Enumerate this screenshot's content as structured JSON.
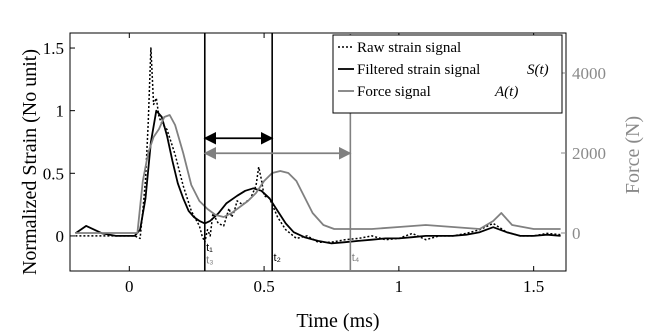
{
  "chart_data": {
    "type": "line",
    "xlabel": "Time (ms)",
    "ylabel": "Normalized Strain (No unit)",
    "y2label": "Force (N)",
    "xlim": [
      -0.22,
      1.62
    ],
    "ylim": [
      -0.28,
      1.62
    ],
    "y2lim": [
      -950,
      5000
    ],
    "xticks": [
      0,
      0.5,
      1,
      1.5
    ],
    "xtick_labels": [
      "0",
      "0.5",
      "1",
      "1.5"
    ],
    "yticks": [
      0,
      0.5,
      1,
      1.5
    ],
    "ytick_labels": [
      "0",
      "0.5",
      "1",
      "1.5"
    ],
    "y2ticks": [
      0,
      2000,
      4000
    ],
    "y2tick_labels": [
      "0",
      "2000",
      "4000"
    ],
    "grid": false,
    "legend_position": "top-right",
    "colors": {
      "raw": "#000000",
      "filtered": "#000000",
      "force": "#808080"
    },
    "series": [
      {
        "name": "Raw strain signal",
        "label_math": "",
        "style": "dotted",
        "axis": "left",
        "x": [
          -0.2,
          -0.12,
          -0.05,
          0.0,
          0.02,
          0.04,
          0.05,
          0.06,
          0.07,
          0.08,
          0.09,
          0.1,
          0.11,
          0.12,
          0.14,
          0.17,
          0.2,
          0.23,
          0.26,
          0.27,
          0.28,
          0.29,
          0.3,
          0.31,
          0.33,
          0.35,
          0.37,
          0.38,
          0.39,
          0.4,
          0.42,
          0.45,
          0.47,
          0.48,
          0.49,
          0.5,
          0.52,
          0.55,
          0.58,
          0.62,
          0.66,
          0.7,
          0.75,
          0.8,
          0.85,
          0.9,
          0.95,
          1.0,
          1.05,
          1.1,
          1.15,
          1.2,
          1.25,
          1.3,
          1.35,
          1.4,
          1.45,
          1.5,
          1.55,
          1.6
        ],
        "y": [
          0.0,
          0.0,
          0.0,
          0.0,
          0.0,
          -0.02,
          0.2,
          0.45,
          0.9,
          1.5,
          1.05,
          1.1,
          0.95,
          0.9,
          0.85,
          0.65,
          0.4,
          0.2,
          0.08,
          0.0,
          -0.05,
          0.05,
          0.0,
          0.18,
          0.1,
          0.08,
          0.22,
          0.15,
          0.2,
          0.28,
          0.25,
          0.3,
          0.4,
          0.55,
          0.45,
          0.32,
          0.3,
          0.15,
          0.05,
          -0.02,
          0.0,
          -0.05,
          -0.05,
          -0.03,
          -0.02,
          0.0,
          -0.03,
          -0.02,
          0.02,
          -0.03,
          0.0,
          0.0,
          0.02,
          0.05,
          0.1,
          0.03,
          0.0,
          0.0,
          0.02,
          0.01
        ]
      },
      {
        "name": "Filtered strain signal",
        "label_math": "S(t)",
        "style": "solid",
        "axis": "left",
        "x": [
          -0.2,
          -0.16,
          -0.1,
          -0.05,
          0.0,
          0.02,
          0.04,
          0.06,
          0.08,
          0.1,
          0.12,
          0.14,
          0.16,
          0.18,
          0.2,
          0.22,
          0.24,
          0.26,
          0.28,
          0.3,
          0.33,
          0.36,
          0.4,
          0.43,
          0.46,
          0.49,
          0.52,
          0.55,
          0.58,
          0.61,
          0.65,
          0.7,
          0.75,
          0.8,
          0.85,
          0.9,
          0.95,
          1.0,
          1.05,
          1.1,
          1.15,
          1.2,
          1.25,
          1.3,
          1.35,
          1.4,
          1.45,
          1.5,
          1.55,
          1.6
        ],
        "y": [
          0.02,
          0.08,
          0.02,
          0.0,
          0.0,
          0.0,
          0.05,
          0.3,
          0.75,
          1.0,
          0.95,
          0.8,
          0.6,
          0.42,
          0.3,
          0.2,
          0.15,
          0.12,
          0.1,
          0.12,
          0.18,
          0.26,
          0.32,
          0.36,
          0.38,
          0.36,
          0.3,
          0.2,
          0.1,
          0.03,
          -0.01,
          -0.04,
          -0.06,
          -0.05,
          -0.04,
          -0.03,
          -0.02,
          -0.02,
          -0.01,
          0.0,
          0.0,
          0.0,
          0.01,
          0.03,
          0.07,
          0.03,
          0.0,
          0.0,
          0.01,
          0.0
        ]
      },
      {
        "name": "Force signal",
        "label_math": "A(t)",
        "style": "solid",
        "axis": "right",
        "x": [
          -0.2,
          -0.1,
          0.0,
          0.03,
          0.05,
          0.07,
          0.09,
          0.11,
          0.13,
          0.15,
          0.17,
          0.2,
          0.23,
          0.26,
          0.29,
          0.32,
          0.35,
          0.38,
          0.41,
          0.44,
          0.47,
          0.5,
          0.53,
          0.56,
          0.59,
          0.62,
          0.65,
          0.68,
          0.72,
          0.76,
          0.8,
          0.85,
          0.9,
          1.0,
          1.1,
          1.2,
          1.3,
          1.35,
          1.38,
          1.42,
          1.5,
          1.6
        ],
        "y": [
          0,
          0,
          0,
          0,
          1300,
          2000,
          2400,
          2600,
          2900,
          2950,
          2700,
          2000,
          1200,
          800,
          600,
          450,
          400,
          500,
          650,
          800,
          1000,
          1300,
          1500,
          1550,
          1500,
          1300,
          900,
          500,
          200,
          100,
          100,
          100,
          100,
          150,
          200,
          150,
          100,
          300,
          500,
          200,
          100,
          100
        ]
      }
    ],
    "vertical_lines": [
      {
        "x": 0.28,
        "color": "#000000"
      },
      {
        "x": 0.53,
        "color": "#000000"
      },
      {
        "x": 0.82,
        "color": "#808080"
      }
    ],
    "arrows": [
      {
        "x_start": 0.28,
        "x_end": 0.53,
        "y": 0.78,
        "color": "#000000"
      },
      {
        "x_start": 0.28,
        "x_end": 0.82,
        "y": 0.66,
        "color": "#808080"
      }
    ],
    "annotations": [
      {
        "text": "t₁",
        "x": 0.285,
        "y": -0.12,
        "color": "#000000"
      },
      {
        "text": "t₃",
        "x": 0.285,
        "y": -0.22,
        "color": "#808080"
      },
      {
        "text": "t₂",
        "x": 0.535,
        "y": -0.2,
        "color": "#000000"
      },
      {
        "text": "t₄",
        "x": 0.825,
        "y": -0.2,
        "color": "#808080"
      }
    ]
  }
}
